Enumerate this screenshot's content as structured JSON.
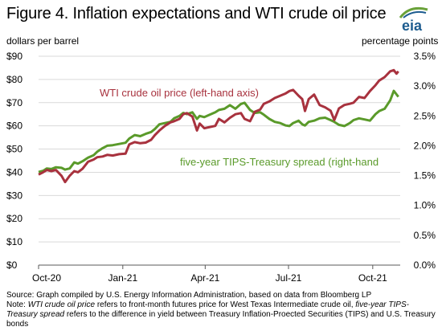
{
  "header": {
    "title": "Figure 4. Inflation expectations and WTI crude oil price",
    "logo_text": "eia"
  },
  "footnote": {
    "source": "Source: Graph compiled by U.S. Energy Information Administration, based on data from Bloomberg LP",
    "note_prefix": "Note: ",
    "note_term1": "WTI crude oil price",
    "note_mid1": " refers to front-month futures price for West Texas Intermediate crude oil, ",
    "note_term2": "five-year TIPS-Treasury spread",
    "note_mid2": " refers to the difference in yield between Treasury Inflation-Proected Securities (TIPS) and U.S. Treasury bonds"
  },
  "colors": {
    "wti": "#a8323e",
    "tips": "#5a9a2a",
    "axis": "#595959",
    "logo_blue": "#1d5c8f",
    "logo_green": "#6aa23a"
  },
  "chart_data": {
    "type": "line",
    "title": "Figure 4. Inflation expectations and WTI crude oil price",
    "ylabel": "dollars per barrel",
    "y2label": "percentage points",
    "ylim": [
      0,
      90
    ],
    "y2lim": [
      0,
      3.5
    ],
    "yticks": [
      "$0",
      "$10",
      "$20",
      "$30",
      "$40",
      "$50",
      "$60",
      "$70",
      "$80",
      "$90"
    ],
    "y2ticks": [
      "0.0%",
      "0.5%",
      "1.0%",
      "1.5%",
      "2.0%",
      "2.5%",
      "3.0%",
      "3.5%"
    ],
    "xlim": [
      "2020-10-01",
      "2021-10-31"
    ],
    "xticks": [
      {
        "date": "2020-10-01",
        "label": "Oct-20"
      },
      {
        "date": "2021-01-01",
        "label": "Jan-21"
      },
      {
        "date": "2021-04-01",
        "label": "Apr-21"
      },
      {
        "date": "2021-07-01",
        "label": "Jul-21"
      },
      {
        "date": "2021-10-01",
        "label": "Oct-21"
      }
    ],
    "grid": true,
    "legend": "inline labels",
    "series": [
      {
        "name": "WTI crude oil price (left-hand axis)",
        "axis": "left",
        "points": [
          [
            "2020-10-01",
            39
          ],
          [
            "2020-10-06",
            40
          ],
          [
            "2020-10-10",
            41
          ],
          [
            "2020-10-15",
            40.5
          ],
          [
            "2020-10-20",
            41
          ],
          [
            "2020-10-26",
            38.5
          ],
          [
            "2020-10-30",
            35.8
          ],
          [
            "2020-11-04",
            38.5
          ],
          [
            "2020-11-09",
            40.5
          ],
          [
            "2020-11-13",
            40
          ],
          [
            "2020-11-18",
            41.5
          ],
          [
            "2020-11-24",
            44.5
          ],
          [
            "2020-11-30",
            45.5
          ],
          [
            "2020-12-04",
            46.5
          ],
          [
            "2020-12-10",
            46.8
          ],
          [
            "2020-12-15",
            47.5
          ],
          [
            "2020-12-21",
            47.2
          ],
          [
            "2020-12-28",
            47.8
          ],
          [
            "2021-01-04",
            48
          ],
          [
            "2021-01-08",
            52
          ],
          [
            "2021-01-14",
            53
          ],
          [
            "2021-01-20",
            52.5
          ],
          [
            "2021-01-26",
            52.8
          ],
          [
            "2021-02-01",
            54
          ],
          [
            "2021-02-05",
            56
          ],
          [
            "2021-02-10",
            58
          ],
          [
            "2021-02-16",
            60
          ],
          [
            "2021-02-22",
            61.5
          ],
          [
            "2021-02-26",
            62
          ],
          [
            "2021-03-04",
            63
          ],
          [
            "2021-03-08",
            65
          ],
          [
            "2021-03-12",
            65.5
          ],
          [
            "2021-03-18",
            64
          ],
          [
            "2021-03-23",
            58
          ],
          [
            "2021-03-26",
            61
          ],
          [
            "2021-03-31",
            59
          ],
          [
            "2021-04-06",
            59.5
          ],
          [
            "2021-04-12",
            60
          ],
          [
            "2021-04-16",
            63
          ],
          [
            "2021-04-22",
            61.5
          ],
          [
            "2021-04-28",
            63.5
          ],
          [
            "2021-05-04",
            65
          ],
          [
            "2021-05-10",
            65.5
          ],
          [
            "2021-05-14",
            63
          ],
          [
            "2021-05-20",
            62
          ],
          [
            "2021-05-25",
            66
          ],
          [
            "2021-05-31",
            67
          ],
          [
            "2021-06-04",
            69.5
          ],
          [
            "2021-06-10",
            70.5
          ],
          [
            "2021-06-16",
            72
          ],
          [
            "2021-06-22",
            73
          ],
          [
            "2021-06-28",
            74
          ],
          [
            "2021-07-02",
            75
          ],
          [
            "2021-07-06",
            75.5
          ],
          [
            "2021-07-12",
            73
          ],
          [
            "2021-07-16",
            71.5
          ],
          [
            "2021-07-19",
            66.4
          ],
          [
            "2021-07-23",
            71.5
          ],
          [
            "2021-07-29",
            73.5
          ],
          [
            "2021-08-04",
            69
          ],
          [
            "2021-08-10",
            68
          ],
          [
            "2021-08-16",
            66.5
          ],
          [
            "2021-08-20",
            62.5
          ],
          [
            "2021-08-25",
            67.5
          ],
          [
            "2021-08-31",
            69
          ],
          [
            "2021-09-06",
            69.5
          ],
          [
            "2021-09-10",
            70
          ],
          [
            "2021-09-16",
            72.5
          ],
          [
            "2021-09-22",
            72
          ],
          [
            "2021-09-28",
            75
          ],
          [
            "2021-10-04",
            77.5
          ],
          [
            "2021-10-08",
            79.5
          ],
          [
            "2021-10-14",
            81
          ],
          [
            "2021-10-20",
            83.5
          ],
          [
            "2021-10-24",
            84
          ],
          [
            "2021-10-27",
            82.5
          ],
          [
            "2021-10-29",
            83.5
          ]
        ]
      },
      {
        "name": "five-year TIPS-Treasury spread (right-hand axis)",
        "label_shown": "five-year  TIPS-Treasury  spread  (right-hand",
        "axis": "right",
        "points": [
          [
            "2020-10-01",
            1.56
          ],
          [
            "2020-10-06",
            1.58
          ],
          [
            "2020-10-10",
            1.62
          ],
          [
            "2020-10-15",
            1.61
          ],
          [
            "2020-10-20",
            1.64
          ],
          [
            "2020-10-26",
            1.63
          ],
          [
            "2020-10-30",
            1.6
          ],
          [
            "2020-11-04",
            1.62
          ],
          [
            "2020-11-09",
            1.72
          ],
          [
            "2020-11-13",
            1.7
          ],
          [
            "2020-11-18",
            1.74
          ],
          [
            "2020-11-24",
            1.8
          ],
          [
            "2020-11-30",
            1.84
          ],
          [
            "2020-12-04",
            1.9
          ],
          [
            "2020-12-10",
            1.96
          ],
          [
            "2020-12-15",
            2.0
          ],
          [
            "2020-12-21",
            2.01
          ],
          [
            "2020-12-28",
            2.03
          ],
          [
            "2021-01-04",
            2.05
          ],
          [
            "2021-01-08",
            2.12
          ],
          [
            "2021-01-14",
            2.18
          ],
          [
            "2021-01-20",
            2.16
          ],
          [
            "2021-01-26",
            2.2
          ],
          [
            "2021-02-01",
            2.23
          ],
          [
            "2021-02-05",
            2.28
          ],
          [
            "2021-02-10",
            2.36
          ],
          [
            "2021-02-16",
            2.38
          ],
          [
            "2021-02-22",
            2.4
          ],
          [
            "2021-02-26",
            2.46
          ],
          [
            "2021-03-04",
            2.5
          ],
          [
            "2021-03-08",
            2.55
          ],
          [
            "2021-03-12",
            2.53
          ],
          [
            "2021-03-18",
            2.56
          ],
          [
            "2021-03-23",
            2.45
          ],
          [
            "2021-03-26",
            2.5
          ],
          [
            "2021-03-31",
            2.48
          ],
          [
            "2021-04-06",
            2.52
          ],
          [
            "2021-04-12",
            2.56
          ],
          [
            "2021-04-16",
            2.6
          ],
          [
            "2021-04-22",
            2.62
          ],
          [
            "2021-04-28",
            2.68
          ],
          [
            "2021-05-04",
            2.62
          ],
          [
            "2021-05-10",
            2.7
          ],
          [
            "2021-05-14",
            2.72
          ],
          [
            "2021-05-20",
            2.6
          ],
          [
            "2021-05-25",
            2.55
          ],
          [
            "2021-05-31",
            2.56
          ],
          [
            "2021-06-04",
            2.52
          ],
          [
            "2021-06-10",
            2.45
          ],
          [
            "2021-06-16",
            2.4
          ],
          [
            "2021-06-22",
            2.38
          ],
          [
            "2021-06-28",
            2.34
          ],
          [
            "2021-07-02",
            2.33
          ],
          [
            "2021-07-06",
            2.38
          ],
          [
            "2021-07-12",
            2.42
          ],
          [
            "2021-07-16",
            2.36
          ],
          [
            "2021-07-19",
            2.34
          ],
          [
            "2021-07-23",
            2.4
          ],
          [
            "2021-07-29",
            2.42
          ],
          [
            "2021-08-04",
            2.46
          ],
          [
            "2021-08-10",
            2.47
          ],
          [
            "2021-08-16",
            2.43
          ],
          [
            "2021-08-20",
            2.4
          ],
          [
            "2021-08-25",
            2.35
          ],
          [
            "2021-08-31",
            2.33
          ],
          [
            "2021-09-06",
            2.38
          ],
          [
            "2021-09-10",
            2.43
          ],
          [
            "2021-09-16",
            2.46
          ],
          [
            "2021-09-22",
            2.44
          ],
          [
            "2021-09-28",
            2.42
          ],
          [
            "2021-10-04",
            2.53
          ],
          [
            "2021-10-08",
            2.58
          ],
          [
            "2021-10-14",
            2.62
          ],
          [
            "2021-10-20",
            2.76
          ],
          [
            "2021-10-24",
            2.92
          ],
          [
            "2021-10-27",
            2.86
          ],
          [
            "2021-10-29",
            2.82
          ]
        ]
      }
    ]
  }
}
